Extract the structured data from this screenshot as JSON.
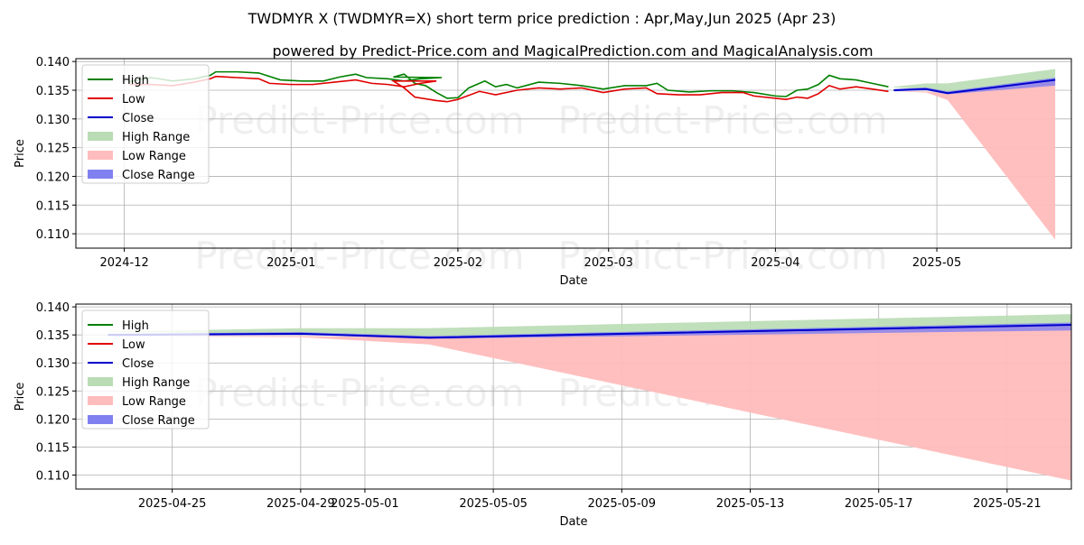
{
  "title": "TWDMYR X (TWDMYR=X) short term price prediction : Apr,May,Jun 2025 (Apr 23)",
  "subtitle": "powered by Predict-Price.com and MagicalPrediction.com and MagicalAnalysis.com",
  "watermark": "Predict-Price.com",
  "colors": {
    "high": "#008000",
    "low": "#e00000",
    "close": "#0000cc",
    "high_range": "#b9dcb4",
    "low_range": "#ffbcbc",
    "close_range": "#8080f0",
    "grid": "#b0b0b0"
  },
  "chart_data": [
    {
      "type": "line",
      "xlabel": "Date",
      "ylabel": "Price",
      "ylim": [
        0.1075,
        0.1405
      ],
      "x_axis_type": "date",
      "xlim": [
        "2024-11-22",
        "2025-05-26"
      ],
      "x_ticks": [
        "2024-12-01",
        "2025-01-01",
        "2025-02-01",
        "2025-03-01",
        "2025-04-01",
        "2025-05-01"
      ],
      "x_tick_labels": [
        "2024-12",
        "2025-01",
        "2025-02",
        "2025-03",
        "2025-04",
        "2025-05"
      ],
      "y_ticks": [
        0.11,
        0.115,
        0.12,
        0.125,
        0.13,
        0.135,
        0.14
      ],
      "y_tick_labels": [
        "0.110",
        "0.115",
        "0.120",
        "0.125",
        "0.130",
        "0.135",
        "0.140"
      ],
      "grid": true,
      "legend_position": "top-left",
      "legend": [
        "High",
        "Low",
        "Close",
        "High Range",
        "Low Range",
        "Close Range"
      ],
      "series": [
        {
          "name": "High",
          "points": [
            [
              "2024-12-02",
              0.1365
            ],
            [
              "2024-12-06",
              0.1372
            ],
            [
              "2024-12-10",
              0.1366
            ],
            [
              "2024-12-14",
              0.137
            ],
            [
              "2024-12-17",
              0.1376
            ],
            [
              "2024-12-18",
              0.1382
            ],
            [
              "2024-12-22",
              0.1382
            ],
            [
              "2024-12-26",
              0.138
            ],
            [
              "2024-12-30",
              0.1368
            ],
            [
              "2025-01-03",
              0.1366
            ],
            [
              "2025-01-07",
              0.1366
            ],
            [
              "2025-01-10",
              0.1373
            ],
            [
              "2025-01-13",
              0.1378
            ],
            [
              "2025-01-15",
              0.1372
            ],
            [
              "2025-01-19",
              0.137
            ],
            [
              "2025-01-22",
              0.1366
            ],
            [
              "2025-01-25",
              0.137
            ],
            [
              "2025-01-29",
              0.1372
            ],
            [
              "2025-01-20",
              0.1373
            ],
            [
              "2025-01-22",
              0.1378
            ],
            [
              "2025-01-24",
              0.1362
            ],
            [
              "2025-01-26",
              0.1358
            ],
            [
              "2025-01-28",
              0.1346
            ],
            [
              "2025-01-30",
              0.1336
            ],
            [
              "2025-02-01",
              0.1337
            ],
            [
              "2025-02-03",
              0.1354
            ],
            [
              "2025-02-06",
              0.1366
            ],
            [
              "2025-02-08",
              0.1356
            ],
            [
              "2025-02-10",
              0.136
            ],
            [
              "2025-02-12",
              0.1354
            ],
            [
              "2025-02-16",
              0.1364
            ],
            [
              "2025-02-20",
              0.1362
            ],
            [
              "2025-02-24",
              0.1358
            ],
            [
              "2025-02-28",
              0.1352
            ],
            [
              "2025-03-04",
              0.1358
            ],
            [
              "2025-03-08",
              0.1358
            ],
            [
              "2025-03-10",
              0.1362
            ],
            [
              "2025-03-12",
              0.135
            ],
            [
              "2025-03-16",
              0.1347
            ],
            [
              "2025-03-20",
              0.1349
            ],
            [
              "2025-03-24",
              0.1349
            ],
            [
              "2025-03-28",
              0.1346
            ],
            [
              "2025-04-01",
              0.134
            ],
            [
              "2025-04-03",
              0.1339
            ],
            [
              "2025-04-05",
              0.135
            ],
            [
              "2025-04-07",
              0.1352
            ],
            [
              "2025-04-09",
              0.136
            ],
            [
              "2025-04-11",
              0.1376
            ],
            [
              "2025-04-13",
              0.137
            ],
            [
              "2025-04-16",
              0.1368
            ],
            [
              "2025-04-19",
              0.1362
            ],
            [
              "2025-04-22",
              0.1356
            ]
          ]
        },
        {
          "name": "Low",
          "points": [
            [
              "2024-12-02",
              0.136
            ],
            [
              "2024-12-06",
              0.136
            ],
            [
              "2024-12-10",
              0.1358
            ],
            [
              "2024-12-14",
              0.1364
            ],
            [
              "2024-12-17",
              0.137
            ],
            [
              "2024-12-18",
              0.1374
            ],
            [
              "2024-12-22",
              0.1372
            ],
            [
              "2024-12-26",
              0.137
            ],
            [
              "2024-12-28",
              0.1362
            ],
            [
              "2025-01-01",
              0.136
            ],
            [
              "2025-01-05",
              0.136
            ],
            [
              "2025-01-09",
              0.1364
            ],
            [
              "2025-01-13",
              0.1368
            ],
            [
              "2025-01-16",
              0.1362
            ],
            [
              "2025-01-19",
              0.136
            ],
            [
              "2025-01-22",
              0.1356
            ],
            [
              "2025-01-25",
              0.1362
            ],
            [
              "2025-01-28",
              0.1366
            ],
            [
              "2025-01-20",
              0.1366
            ],
            [
              "2025-01-22",
              0.1354
            ],
            [
              "2025-01-24",
              0.1338
            ],
            [
              "2025-01-28",
              0.1332
            ],
            [
              "2025-01-30",
              0.133
            ],
            [
              "2025-02-01",
              0.1334
            ],
            [
              "2025-02-05",
              0.1348
            ],
            [
              "2025-02-08",
              0.1342
            ],
            [
              "2025-02-12",
              0.135
            ],
            [
              "2025-02-16",
              0.1354
            ],
            [
              "2025-02-20",
              0.1352
            ],
            [
              "2025-02-24",
              0.1354
            ],
            [
              "2025-02-28",
              0.1346
            ],
            [
              "2025-03-04",
              0.1352
            ],
            [
              "2025-03-08",
              0.1354
            ],
            [
              "2025-03-10",
              0.1344
            ],
            [
              "2025-03-14",
              0.1342
            ],
            [
              "2025-03-18",
              0.1342
            ],
            [
              "2025-03-22",
              0.1346
            ],
            [
              "2025-03-26",
              0.1346
            ],
            [
              "2025-03-28",
              0.134
            ],
            [
              "2025-04-01",
              0.1336
            ],
            [
              "2025-04-03",
              0.1334
            ],
            [
              "2025-04-05",
              0.1338
            ],
            [
              "2025-04-07",
              0.1336
            ],
            [
              "2025-04-09",
              0.1344
            ],
            [
              "2025-04-11",
              0.1358
            ],
            [
              "2025-04-13",
              0.1352
            ],
            [
              "2025-04-16",
              0.1356
            ],
            [
              "2025-04-19",
              0.1352
            ],
            [
              "2025-04-22",
              0.1348
            ]
          ]
        },
        {
          "name": "Close",
          "points": [
            [
              "2025-04-23",
              0.135
            ],
            [
              "2025-04-29",
              0.1352
            ],
            [
              "2025-05-03",
              0.1345
            ],
            [
              "2025-05-23",
              0.1368
            ]
          ]
        }
      ],
      "ranges": [
        {
          "name": "High Range",
          "points": [
            [
              "2025-04-23",
              0.1355,
              0.1356
            ],
            [
              "2025-04-29",
              0.1352,
              0.1362
            ],
            [
              "2025-05-03",
              0.1345,
              0.1362
            ],
            [
              "2025-05-23",
              0.1368,
              0.1387
            ]
          ]
        },
        {
          "name": "Low Range",
          "points": [
            [
              "2025-04-23",
              0.1348,
              0.1348
            ],
            [
              "2025-04-29",
              0.1346,
              0.1348
            ],
            [
              "2025-05-03",
              0.1333,
              0.1345
            ],
            [
              "2025-05-23",
              0.109,
              0.1368
            ]
          ]
        },
        {
          "name": "Close Range",
          "points": [
            [
              "2025-04-23",
              0.1348,
              0.1352
            ],
            [
              "2025-04-29",
              0.135,
              0.1355
            ],
            [
              "2025-05-03",
              0.1343,
              0.1348
            ],
            [
              "2025-05-23",
              0.1358,
              0.1372
            ]
          ]
        }
      ]
    },
    {
      "type": "line",
      "xlabel": "Date",
      "ylabel": "Price",
      "ylim": [
        0.1075,
        0.1405
      ],
      "x_axis_type": "date",
      "xlim": [
        "2025-04-22",
        "2025-05-23"
      ],
      "x_ticks": [
        "2025-04-25",
        "2025-04-29",
        "2025-05-01",
        "2025-05-05",
        "2025-05-09",
        "2025-05-13",
        "2025-05-17",
        "2025-05-21"
      ],
      "x_tick_labels": [
        "2025-04-25",
        "2025-04-29",
        "2025-05-01",
        "2025-05-05",
        "2025-05-09",
        "2025-05-13",
        "2025-05-17",
        "2025-05-21"
      ],
      "y_ticks": [
        0.11,
        0.115,
        0.12,
        0.125,
        0.13,
        0.135,
        0.14
      ],
      "y_tick_labels": [
        "0.110",
        "0.115",
        "0.120",
        "0.125",
        "0.130",
        "0.135",
        "0.140"
      ],
      "grid": true,
      "legend_position": "top-left",
      "legend": [
        "High",
        "Low",
        "Close",
        "High Range",
        "Low Range",
        "Close Range"
      ],
      "series": [
        {
          "name": "Close",
          "points": [
            [
              "2025-04-23",
              0.135
            ],
            [
              "2025-04-29",
              0.1352
            ],
            [
              "2025-05-03",
              0.1345
            ],
            [
              "2025-05-23",
              0.1368
            ]
          ]
        }
      ],
      "ranges": [
        {
          "name": "High Range",
          "points": [
            [
              "2025-04-23",
              0.1355,
              0.1356
            ],
            [
              "2025-04-29",
              0.1352,
              0.1362
            ],
            [
              "2025-05-03",
              0.1345,
              0.1362
            ],
            [
              "2025-05-23",
              0.1368,
              0.1387
            ]
          ]
        },
        {
          "name": "Low Range",
          "points": [
            [
              "2025-04-23",
              0.1348,
              0.1348
            ],
            [
              "2025-04-29",
              0.1346,
              0.1348
            ],
            [
              "2025-05-03",
              0.1333,
              0.1345
            ],
            [
              "2025-05-23",
              0.109,
              0.1368
            ]
          ]
        },
        {
          "name": "Close Range",
          "points": [
            [
              "2025-04-23",
              0.1348,
              0.1352
            ],
            [
              "2025-04-29",
              0.135,
              0.1355
            ],
            [
              "2025-05-03",
              0.1343,
              0.1348
            ],
            [
              "2025-05-23",
              0.1358,
              0.1372
            ]
          ]
        }
      ]
    }
  ]
}
